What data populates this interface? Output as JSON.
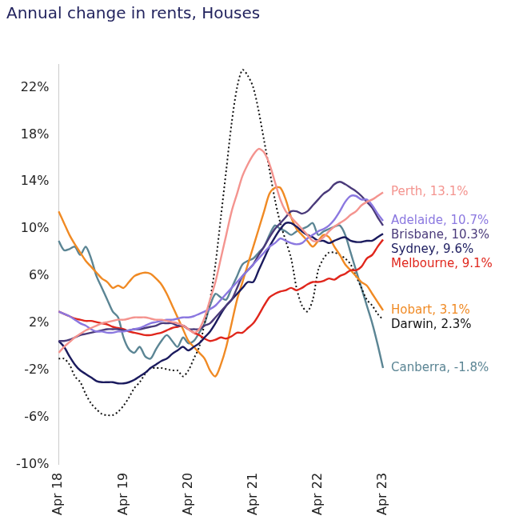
{
  "chart_data": {
    "type": "line",
    "title": "Annual change in rents, Houses",
    "categories": [
      "Apr 18",
      null,
      null,
      null,
      null,
      null,
      null,
      null,
      null,
      null,
      null,
      null,
      "Apr 19",
      null,
      null,
      null,
      null,
      null,
      null,
      null,
      null,
      null,
      null,
      null,
      "Apr 20",
      null,
      null,
      null,
      null,
      null,
      null,
      null,
      null,
      null,
      null,
      null,
      "Apr 21",
      null,
      null,
      null,
      null,
      null,
      null,
      null,
      null,
      null,
      null,
      null,
      "Apr 22",
      null,
      null,
      null,
      null,
      null,
      null,
      null,
      null,
      null,
      null,
      null,
      "Apr 23"
    ],
    "ylim": [
      -10,
      24
    ],
    "yticks": [
      {
        "value": -10,
        "label": "-10%"
      },
      {
        "value": -6,
        "label": "-6%"
      },
      {
        "value": -2,
        "label": "-2%"
      },
      {
        "value": 2,
        "label": "2%"
      },
      {
        "value": 6,
        "label": "6%"
      },
      {
        "value": 10,
        "label": "10%"
      },
      {
        "value": 14,
        "label": "14%"
      },
      {
        "value": 18,
        "label": "18%"
      },
      {
        "value": 22,
        "label": "22%"
      }
    ],
    "grid": false,
    "marker": "none",
    "series": [
      {
        "name": "Perth",
        "label": "Perth, 13.1%",
        "color": "#f4948f",
        "line_style": "solid",
        "values": [
          -0.5,
          0,
          0.4,
          0.8,
          1.1,
          1.4,
          1.6,
          1.8,
          2,
          2.1,
          2.2,
          2.3,
          2.3,
          2.4,
          2.5,
          2.5,
          2.5,
          2.4,
          2.3,
          2.3,
          2.2,
          2.1,
          2,
          1.8,
          1.5,
          1.2,
          1.5,
          2.5,
          4,
          5.5,
          7.5,
          9.5,
          11.5,
          13,
          14.5,
          15.5,
          16.3,
          16.8,
          16.5,
          15.5,
          14,
          12.5,
          11.5,
          11,
          10.5,
          10,
          9.5,
          9,
          9,
          9.3,
          9.8,
          10.2,
          10.5,
          10.8,
          11.2,
          11.5,
          12,
          12.3,
          12.5,
          12.8,
          13.1
        ]
      },
      {
        "name": "Adelaide",
        "label": "Adelaide, 10.7%",
        "color": "#8b78e0",
        "line_style": "solid",
        "values": [
          3,
          2.8,
          2.6,
          2.3,
          2,
          1.8,
          1.5,
          1.3,
          1.3,
          1.2,
          1.2,
          1.3,
          1.3,
          1.4,
          1.5,
          1.6,
          1.8,
          2,
          2.1,
          2.2,
          2.3,
          2.3,
          2.4,
          2.5,
          2.5,
          2.6,
          2.8,
          3,
          3.2,
          3.5,
          4,
          4.5,
          5,
          5.5,
          6,
          6.5,
          7,
          7.5,
          8,
          8.5,
          8.8,
          9.2,
          9,
          8.8,
          8.7,
          8.8,
          9.2,
          9.5,
          9.8,
          10,
          10.3,
          10.8,
          11.5,
          12.3,
          12.8,
          12.8,
          12.5,
          12.5,
          12,
          11.3,
          10.7
        ]
      },
      {
        "name": "Brisbane",
        "label": "Brisbane, 10.3%",
        "color": "#4a3a7a",
        "line_style": "solid",
        "values": [
          0.5,
          0.5,
          0.6,
          0.8,
          1,
          1.1,
          1.2,
          1.3,
          1.4,
          1.5,
          1.5,
          1.5,
          1.4,
          1.4,
          1.5,
          1.5,
          1.6,
          1.7,
          1.8,
          2,
          2,
          2,
          1.8,
          1.8,
          1.5,
          1.5,
          1.5,
          1.8,
          2,
          2.5,
          3,
          3.5,
          4,
          5,
          6,
          6.5,
          7,
          7.8,
          8.5,
          9.3,
          10,
          10.5,
          11,
          11.5,
          11.5,
          11.3,
          11.5,
          12,
          12.5,
          13,
          13.3,
          13.8,
          14,
          13.8,
          13.5,
          13.2,
          12.8,
          12.3,
          11.8,
          11,
          10.3
        ]
      },
      {
        "name": "Sydney",
        "label": "Sydney, 9.6%",
        "color": "#1b1b5e",
        "line_style": "solid",
        "values": [
          0.5,
          0,
          -0.8,
          -1.5,
          -2,
          -2.3,
          -2.6,
          -2.9,
          -3,
          -3,
          -3,
          -3.1,
          -3.1,
          -3,
          -2.8,
          -2.5,
          -2.2,
          -1.8,
          -1.5,
          -1.2,
          -1,
          -0.6,
          -0.3,
          0,
          -0.3,
          0,
          0.3,
          0.8,
          1.3,
          2,
          2.8,
          3.5,
          4,
          4.5,
          5,
          5.5,
          5.5,
          6.5,
          7.5,
          8.5,
          9.3,
          10,
          10.5,
          10.5,
          10.2,
          9.8,
          9.5,
          9.3,
          9,
          9,
          8.8,
          9,
          9.2,
          9.3,
          9,
          8.9,
          8.9,
          9,
          9,
          9.3,
          9.6
        ]
      },
      {
        "name": "Melbourne",
        "label": "Melbourne, 9.1%",
        "color": "#e0261c",
        "line_style": "solid",
        "values": [
          3,
          2.8,
          2.6,
          2.4,
          2.3,
          2.2,
          2.2,
          2.1,
          2,
          1.9,
          1.7,
          1.6,
          1.5,
          1.3,
          1.2,
          1.1,
          1,
          1,
          1.1,
          1.2,
          1.4,
          1.6,
          1.7,
          1.8,
          1.5,
          1.2,
          1,
          0.7,
          0.5,
          0.6,
          0.8,
          0.7,
          0.9,
          1.2,
          1.2,
          1.6,
          2,
          2.7,
          3.5,
          4.2,
          4.5,
          4.7,
          4.8,
          5,
          4.8,
          5,
          5.3,
          5.5,
          5.5,
          5.6,
          5.8,
          5.7,
          6,
          6.2,
          6.5,
          6.5,
          6.8,
          7.5,
          7.8,
          8.5,
          9.1
        ]
      },
      {
        "name": "Hobart",
        "label": "Hobart, 3.1%",
        "color": "#f08a24",
        "line_style": "solid",
        "values": [
          11.5,
          10.5,
          9.5,
          8.7,
          8,
          7.3,
          6.8,
          6.3,
          5.8,
          5.5,
          5,
          5.2,
          5,
          5.5,
          6,
          6.2,
          6.3,
          6.2,
          5.8,
          5.3,
          4.5,
          3.5,
          2.5,
          1.5,
          0.5,
          0,
          -0.5,
          -1,
          -2,
          -2.5,
          -1.5,
          0,
          2,
          4,
          5.5,
          7,
          8.5,
          10,
          11.5,
          13,
          13.5,
          13.5,
          12.5,
          11,
          10,
          9.5,
          9,
          8.5,
          9,
          9.5,
          9.3,
          8.5,
          7.8,
          7,
          6.5,
          6,
          5.5,
          5.2,
          4.5,
          3.8,
          3.1
        ]
      },
      {
        "name": "Darwin",
        "label": "Darwin, 2.3%",
        "color": "#111111",
        "line_style": "dotted",
        "values": [
          -1,
          -1,
          -1.5,
          -2.5,
          -3,
          -4,
          -4.8,
          -5.3,
          -5.7,
          -5.8,
          -5.8,
          -5.5,
          -5,
          -4.3,
          -3.5,
          -3,
          -2.3,
          -1.8,
          -1.8,
          -1.8,
          -1.9,
          -2,
          -2,
          -2.5,
          -2,
          -1,
          0,
          2,
          4,
          7,
          11,
          15,
          19,
          22,
          23.5,
          23,
          22,
          20,
          17.5,
          15,
          12.5,
          10.5,
          9,
          7.5,
          5,
          3.5,
          3,
          4,
          6.5,
          7.5,
          8,
          8,
          7.8,
          7.5,
          7,
          6,
          5,
          4,
          3.5,
          2.8,
          2.3
        ]
      },
      {
        "name": "Canberra",
        "label": "Canberra, -1.8%",
        "color": "#5b8594",
        "line_style": "solid",
        "values": [
          9,
          8.2,
          8.3,
          8.5,
          7.8,
          8.5,
          7.5,
          6,
          5,
          4,
          3,
          2.5,
          0.8,
          -0.2,
          -0.5,
          0,
          -0.8,
          -1,
          -0.2,
          0.5,
          1,
          0.5,
          0,
          0.8,
          0.3,
          0.5,
          1.2,
          2,
          3.5,
          4.5,
          4.2,
          4,
          5,
          6,
          7,
          7.3,
          7.5,
          8,
          8.5,
          9.5,
          10.3,
          10,
          9.8,
          9.5,
          9.8,
          10,
          10.2,
          10.5,
          9.5,
          9.8,
          10,
          10.2,
          10.3,
          9.5,
          8,
          6.5,
          5,
          3.5,
          2,
          0.2,
          -1.8
        ]
      }
    ]
  }
}
